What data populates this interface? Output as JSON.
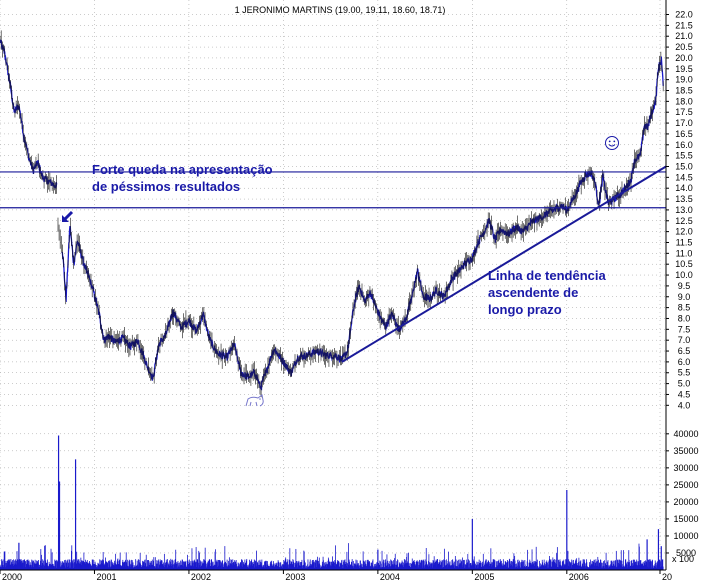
{
  "title": "1 JERONIMO MARTINS (19.00, 19.11, 18.60, 18.71)",
  "colors": {
    "price": "#1a1acc",
    "line": "#1a1a99",
    "annotation": "#1a1aa8",
    "grid": "#9a9a9a"
  },
  "annotations": {
    "drop_line1": "Forte queda na apresentação",
    "drop_line2": "de péssimos resultados",
    "trend_line1": "Linha de tendência",
    "trend_line2": "ascendente de",
    "trend_line3": "longo prazo"
  },
  "icons": [
    "arrow-down-left-icon",
    "smiley-icon",
    "cartoon-animal-icon"
  ],
  "volume_multiplier_label": "x 100",
  "chart_data": [
    {
      "type": "line",
      "title": "1 JERONIMO MARTINS (19.00, 19.11, 18.60, 18.71)",
      "x_ticks": [
        "2000",
        "2001",
        "2002",
        "2003",
        "2004",
        "2005",
        "2006",
        "20"
      ],
      "y_ticks": [
        "4.0",
        "4.5",
        "5.0",
        "5.5",
        "6.0",
        "6.5",
        "7.0",
        "7.5",
        "8.0",
        "8.5",
        "9.0",
        "9.5",
        "10.0",
        "10.5",
        "11.0",
        "11.5",
        "12.0",
        "12.5",
        "13.0",
        "13.5",
        "14.0",
        "14.5",
        "15.0",
        "15.5",
        "16.0",
        "16.5",
        "17.0",
        "17.5",
        "18.0",
        "18.5",
        "19.0",
        "19.5",
        "20.0",
        "20.5",
        "21.0",
        "21.5",
        "22.0"
      ],
      "ylim": [
        3.6,
        22.3
      ],
      "xlim": [
        2000.0,
        2007.05
      ],
      "grid": true,
      "price_anchors": [
        [
          2000.0,
          20.8
        ],
        [
          2000.05,
          20.2
        ],
        [
          2000.1,
          19.0
        ],
        [
          2000.15,
          17.5
        ],
        [
          2000.2,
          17.8
        ],
        [
          2000.25,
          16.5
        ],
        [
          2000.3,
          15.5
        ],
        [
          2000.35,
          14.8
        ],
        [
          2000.4,
          15.2
        ],
        [
          2000.45,
          14.5
        ],
        [
          2000.52,
          14.3
        ],
        [
          2000.6,
          14.1
        ],
        [
          2000.61,
          12.3
        ],
        [
          2000.66,
          11.2
        ],
        [
          2000.7,
          8.9
        ],
        [
          2000.74,
          12.3
        ],
        [
          2000.78,
          10.5
        ],
        [
          2000.82,
          11.6
        ],
        [
          2000.88,
          10.6
        ],
        [
          2000.93,
          10.0
        ],
        [
          2000.98,
          9.4
        ],
        [
          2001.05,
          8.2
        ],
        [
          2001.1,
          7.0
        ],
        [
          2001.15,
          7.2
        ],
        [
          2001.22,
          6.9
        ],
        [
          2001.3,
          7.1
        ],
        [
          2001.38,
          6.7
        ],
        [
          2001.46,
          7.0
        ],
        [
          2001.55,
          5.9
        ],
        [
          2001.62,
          5.2
        ],
        [
          2001.68,
          6.8
        ],
        [
          2001.75,
          7.2
        ],
        [
          2001.83,
          8.3
        ],
        [
          2001.92,
          7.6
        ],
        [
          2002.0,
          7.9
        ],
        [
          2002.08,
          7.4
        ],
        [
          2002.15,
          8.2
        ],
        [
          2002.22,
          7.0
        ],
        [
          2002.3,
          6.4
        ],
        [
          2002.4,
          6.2
        ],
        [
          2002.48,
          6.8
        ],
        [
          2002.55,
          5.5
        ],
        [
          2002.62,
          5.3
        ],
        [
          2002.7,
          5.5
        ],
        [
          2002.76,
          4.8
        ],
        [
          2002.82,
          5.6
        ],
        [
          2002.9,
          6.6
        ],
        [
          2003.0,
          6.0
        ],
        [
          2003.08,
          5.5
        ],
        [
          2003.15,
          6.2
        ],
        [
          2003.25,
          6.3
        ],
        [
          2003.35,
          6.5
        ],
        [
          2003.45,
          6.3
        ],
        [
          2003.55,
          6.3
        ],
        [
          2003.62,
          6.1
        ],
        [
          2003.68,
          6.5
        ],
        [
          2003.74,
          8.4
        ],
        [
          2003.8,
          9.5
        ],
        [
          2003.86,
          8.8
        ],
        [
          2003.92,
          9.2
        ],
        [
          2004.0,
          8.3
        ],
        [
          2004.08,
          7.6
        ],
        [
          2004.15,
          8.2
        ],
        [
          2004.22,
          7.5
        ],
        [
          2004.3,
          8.0
        ],
        [
          2004.36,
          9.0
        ],
        [
          2004.42,
          10.2
        ],
        [
          2004.48,
          9.0
        ],
        [
          2004.55,
          8.9
        ],
        [
          2004.62,
          9.3
        ],
        [
          2004.7,
          9.0
        ],
        [
          2004.78,
          9.8
        ],
        [
          2004.86,
          10.2
        ],
        [
          2004.94,
          10.6
        ],
        [
          2005.0,
          10.8
        ],
        [
          2005.06,
          11.5
        ],
        [
          2005.12,
          12.0
        ],
        [
          2005.18,
          12.5
        ],
        [
          2005.24,
          11.6
        ],
        [
          2005.3,
          12.1
        ],
        [
          2005.38,
          11.9
        ],
        [
          2005.46,
          12.2
        ],
        [
          2005.54,
          12.0
        ],
        [
          2005.62,
          12.4
        ],
        [
          2005.7,
          12.6
        ],
        [
          2005.78,
          12.8
        ],
        [
          2005.86,
          13.0
        ],
        [
          2005.94,
          13.2
        ],
        [
          2006.0,
          13.0
        ],
        [
          2006.08,
          13.6
        ],
        [
          2006.14,
          14.2
        ],
        [
          2006.2,
          14.6
        ],
        [
          2006.26,
          14.7
        ],
        [
          2006.3,
          14.2
        ],
        [
          2006.34,
          13.2
        ],
        [
          2006.38,
          14.5
        ],
        [
          2006.44,
          13.3
        ],
        [
          2006.5,
          13.5
        ],
        [
          2006.56,
          13.7
        ],
        [
          2006.62,
          14.0
        ],
        [
          2006.68,
          14.4
        ],
        [
          2006.72,
          15.3
        ],
        [
          2006.78,
          15.5
        ],
        [
          2006.82,
          16.9
        ],
        [
          2006.86,
          16.8
        ],
        [
          2006.9,
          17.5
        ],
        [
          2006.94,
          18.0
        ],
        [
          2006.97,
          19.5
        ],
        [
          2007.0,
          20.0
        ],
        [
          2007.02,
          18.71
        ]
      ],
      "horizontal_lines": [
        14.75,
        13.1
      ],
      "trend_line": [
        [
          2003.62,
          6.0
        ],
        [
          2007.05,
          15.0
        ]
      ]
    },
    {
      "type": "bar",
      "y_ticks": [
        "5000",
        "10000",
        "15000",
        "20000",
        "25000",
        "30000",
        "35000",
        "40000"
      ],
      "ylim": [
        0,
        42000
      ],
      "unit_label": "x 100",
      "volume_spikes": [
        [
          2000.62,
          39500
        ],
        [
          2000.63,
          26000
        ],
        [
          2000.8,
          32500
        ],
        [
          2000.2,
          8000
        ],
        [
          2004.0,
          6000
        ],
        [
          2005.0,
          15000
        ],
        [
          2006.0,
          23500
        ],
        [
          2006.85,
          9000
        ],
        [
          2006.97,
          12000
        ],
        [
          2007.0,
          7000
        ]
      ]
    }
  ]
}
